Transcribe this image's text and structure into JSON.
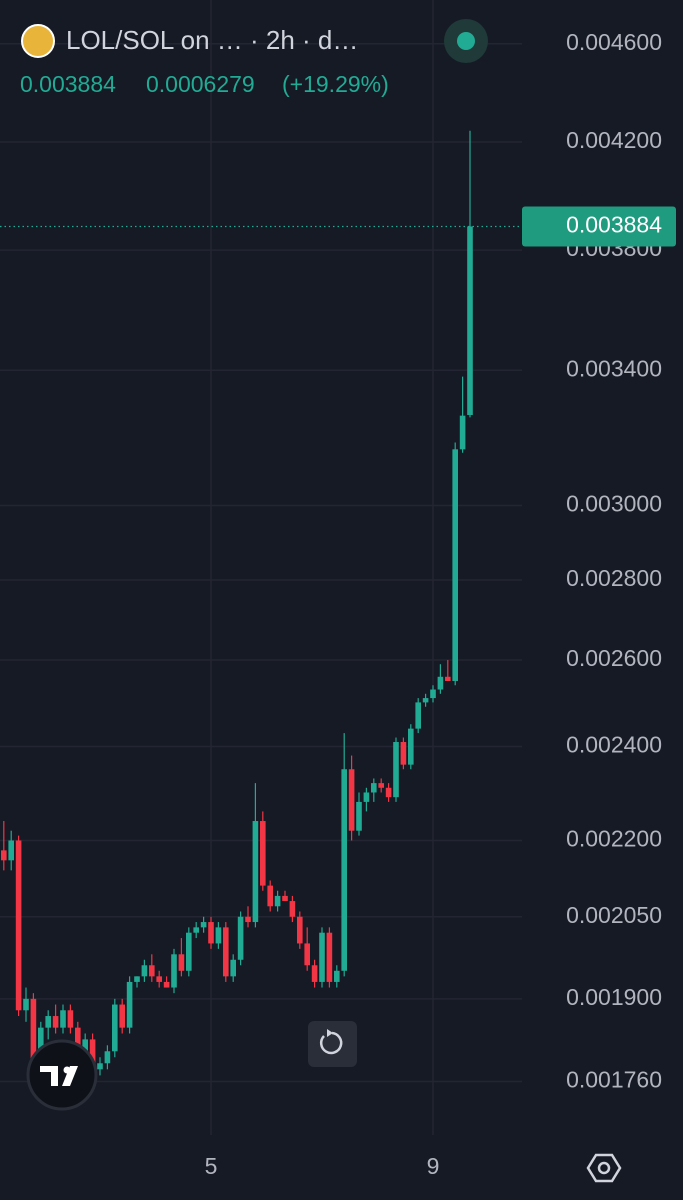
{
  "header": {
    "title": "LOL/SOL on … · 2h · d…",
    "change": 0.0006279,
    "change_pct": "(+19.29%)"
  },
  "chart_data": {
    "type": "candlestick",
    "log_scale": true,
    "grid": true,
    "up_color": "#22ab94",
    "down_color": "#f23645",
    "last_price": 0.003884,
    "ylim": [
      0.001675,
      0.00479
    ],
    "yticks": [
      {
        "value": 0.0046,
        "label": "0.004600"
      },
      {
        "value": 0.0042,
        "label": "0.004200"
      },
      {
        "value": 0.0038,
        "label": "0.003800"
      },
      {
        "value": 0.0034,
        "label": "0.003400"
      },
      {
        "value": 0.003,
        "label": "0.003000"
      },
      {
        "value": 0.0028,
        "label": "0.002800"
      },
      {
        "value": 0.0026,
        "label": "0.002600"
      },
      {
        "value": 0.0024,
        "label": "0.002400"
      },
      {
        "value": 0.0022,
        "label": "0.002200"
      },
      {
        "value": 0.00205,
        "label": "0.002050"
      },
      {
        "value": 0.0019,
        "label": "0.001900"
      },
      {
        "value": 0.00176,
        "label": "0.001760"
      }
    ],
    "categories": [
      null,
      null,
      null,
      null,
      null,
      null,
      null,
      null,
      null,
      null,
      null,
      null,
      null,
      null,
      null,
      null,
      null,
      null,
      null,
      null,
      null,
      null,
      null,
      null,
      null,
      null,
      null,
      null,
      "5",
      null,
      null,
      null,
      null,
      null,
      null,
      null,
      null,
      null,
      null,
      null,
      null,
      null,
      null,
      null,
      null,
      null,
      null,
      null,
      null,
      null,
      null,
      null,
      null,
      null,
      null,
      null,
      null,
      null,
      "9",
      null,
      null,
      null,
      null,
      null
    ],
    "open": [
      0.00218,
      0.00216,
      0.0022,
      0.00188,
      0.0019,
      0.00178,
      0.00185,
      0.00187,
      0.00185,
      0.00188,
      0.00185,
      0.00181,
      0.00183,
      0.00178,
      0.00179,
      0.00181,
      0.00189,
      0.00185,
      0.00193,
      0.00194,
      0.00196,
      0.00194,
      0.00193,
      0.00192,
      0.00198,
      0.00195,
      0.00202,
      0.00203,
      0.00204,
      0.002,
      0.00203,
      0.00194,
      0.00197,
      0.00205,
      0.00204,
      0.00224,
      0.00211,
      0.00207,
      0.00209,
      0.00208,
      0.00205,
      0.002,
      0.00196,
      0.00193,
      0.00202,
      0.00193,
      0.00195,
      0.00235,
      0.00222,
      0.00228,
      0.0023,
      0.00232,
      0.00231,
      0.00229,
      0.00241,
      0.00236,
      0.00244,
      0.0025,
      0.00251,
      0.00253,
      0.00256,
      0.00255,
      0.00316,
      0.003262
    ],
    "high": [
      0.00224,
      0.00222,
      0.00221,
      0.00192,
      0.00191,
      0.00186,
      0.00188,
      0.00189,
      0.00189,
      0.00189,
      0.00186,
      0.00184,
      0.00184,
      0.0018,
      0.00182,
      0.0019,
      0.0019,
      0.00194,
      0.00194,
      0.00197,
      0.00198,
      0.00195,
      0.00194,
      0.00199,
      0.00201,
      0.00203,
      0.00204,
      0.00205,
      0.00205,
      0.00204,
      0.00204,
      0.00198,
      0.00206,
      0.00207,
      0.00232,
      0.00226,
      0.00212,
      0.0021,
      0.0021,
      0.00209,
      0.00206,
      0.00203,
      0.00197,
      0.00203,
      0.00203,
      0.00196,
      0.00243,
      0.00238,
      0.0023,
      0.00231,
      0.00233,
      0.00233,
      0.00232,
      0.00242,
      0.00242,
      0.00245,
      0.00251,
      0.00252,
      0.00254,
      0.00259,
      0.0026,
      0.00318,
      0.00338,
      0.004244
    ],
    "low": [
      0.00214,
      0.00214,
      0.00187,
      0.00186,
      0.00176,
      0.00177,
      0.00183,
      0.00184,
      0.00184,
      0.00184,
      0.0018,
      0.0018,
      0.00177,
      0.00177,
      0.00178,
      0.0018,
      0.00184,
      0.00184,
      0.00192,
      0.00193,
      0.00193,
      0.00192,
      0.00192,
      0.00191,
      0.00194,
      0.00194,
      0.00201,
      0.00202,
      0.00199,
      0.00199,
      0.00193,
      0.00193,
      0.00196,
      0.00203,
      0.00203,
      0.0021,
      0.00206,
      0.00206,
      0.00208,
      0.00204,
      0.00199,
      0.00195,
      0.00192,
      0.00192,
      0.00192,
      0.00192,
      0.00194,
      0.0022,
      0.00221,
      0.00226,
      0.00228,
      0.0023,
      0.00228,
      0.00228,
      0.00235,
      0.00235,
      0.00243,
      0.00249,
      0.0025,
      0.00252,
      0.00255,
      0.00254,
      0.00315,
      0.003255
    ],
    "close": [
      0.00216,
      0.0022,
      0.00188,
      0.0019,
      0.00178,
      0.00185,
      0.00187,
      0.00185,
      0.00188,
      0.00185,
      0.00181,
      0.00183,
      0.00178,
      0.00179,
      0.00181,
      0.00189,
      0.00185,
      0.00193,
      0.00194,
      0.00196,
      0.00194,
      0.00193,
      0.00192,
      0.00198,
      0.00195,
      0.00202,
      0.00203,
      0.00204,
      0.002,
      0.00203,
      0.00194,
      0.00197,
      0.00205,
      0.00204,
      0.00224,
      0.00211,
      0.00207,
      0.00209,
      0.00208,
      0.00205,
      0.002,
      0.00196,
      0.00193,
      0.00202,
      0.00193,
      0.00195,
      0.00235,
      0.00222,
      0.00228,
      0.0023,
      0.00232,
      0.00231,
      0.00229,
      0.00241,
      0.00236,
      0.00244,
      0.0025,
      0.00251,
      0.00253,
      0.00256,
      0.00255,
      0.00316,
      0.00326,
      0.003884
    ]
  }
}
